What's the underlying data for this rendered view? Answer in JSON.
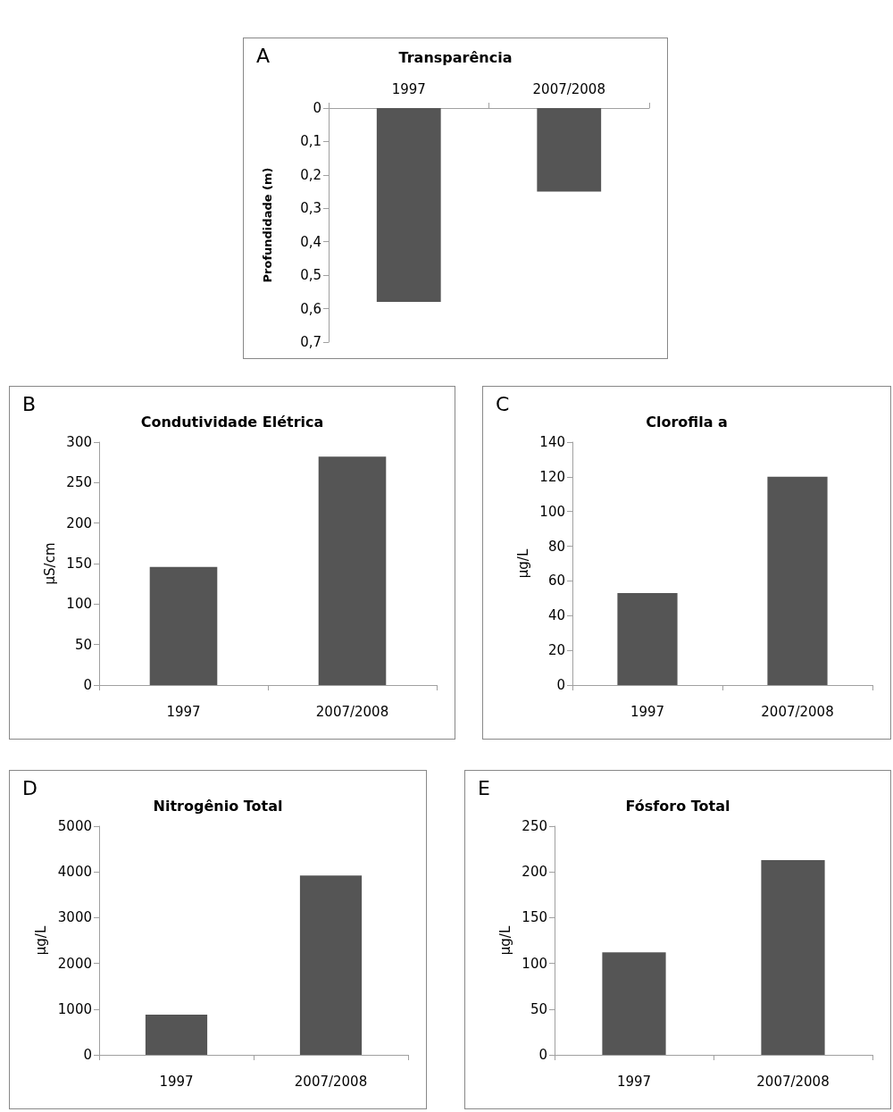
{
  "chart_data": [
    {
      "type": "bar",
      "title": "Transparência",
      "annotations": [
        "A"
      ],
      "ylabel": "Profundidade (m)",
      "categories": [
        "1997",
        "2007/2008"
      ],
      "values": [
        0.58,
        0.25
      ],
      "color": "#555555",
      "ylim": [
        0.7,
        0
      ],
      "yticks": [
        {
          "value": 0,
          "label": "0"
        },
        {
          "value": 0.1,
          "label": "0,1"
        },
        {
          "value": 0.2,
          "label": "0,2"
        },
        {
          "value": 0.3,
          "label": "0,3"
        },
        {
          "value": 0.4,
          "label": "0,4"
        },
        {
          "value": 0.5,
          "label": "0,5"
        },
        {
          "value": 0.6,
          "label": "0,6"
        },
        {
          "value": 0.7,
          "label": "0,7"
        }
      ]
    },
    {
      "type": "bar",
      "title": "Condutividade Elétrica",
      "annotations": [
        "B"
      ],
      "ylabel": "µS/cm",
      "categories": [
        "1997",
        "2007/2008"
      ],
      "values": [
        146,
        282
      ],
      "color": "#555555",
      "ylim": [
        0,
        300
      ],
      "yticks": [
        0,
        50,
        100,
        150,
        200,
        250,
        300
      ]
    },
    {
      "type": "bar",
      "title": "Clorofila a",
      "annotations": [
        "C"
      ],
      "ylabel": "µg/L",
      "categories": [
        "1997",
        "2007/2008"
      ],
      "values": [
        53,
        120
      ],
      "color": "#555555",
      "ylim": [
        0,
        140
      ],
      "yticks": [
        0,
        20,
        40,
        60,
        80,
        100,
        120,
        140
      ]
    },
    {
      "type": "bar",
      "title": "Nitrogênio Total",
      "annotations": [
        "D"
      ],
      "ylabel": "µg/L",
      "categories": [
        "1997",
        "2007/2008"
      ],
      "values": [
        880,
        3920
      ],
      "color": "#555555",
      "ylim": [
        0,
        5000
      ],
      "yticks": [
        0,
        1000,
        2000,
        3000,
        4000,
        5000
      ]
    },
    {
      "type": "bar",
      "title": "Fósforo Total",
      "annotations": [
        "E"
      ],
      "ylabel": "µg/L",
      "categories": [
        "1997",
        "2007/2008"
      ],
      "values": [
        112,
        213
      ],
      "color": "#555555",
      "ylim": [
        0,
        250
      ],
      "yticks": [
        0,
        50,
        100,
        150,
        200,
        250
      ]
    }
  ]
}
